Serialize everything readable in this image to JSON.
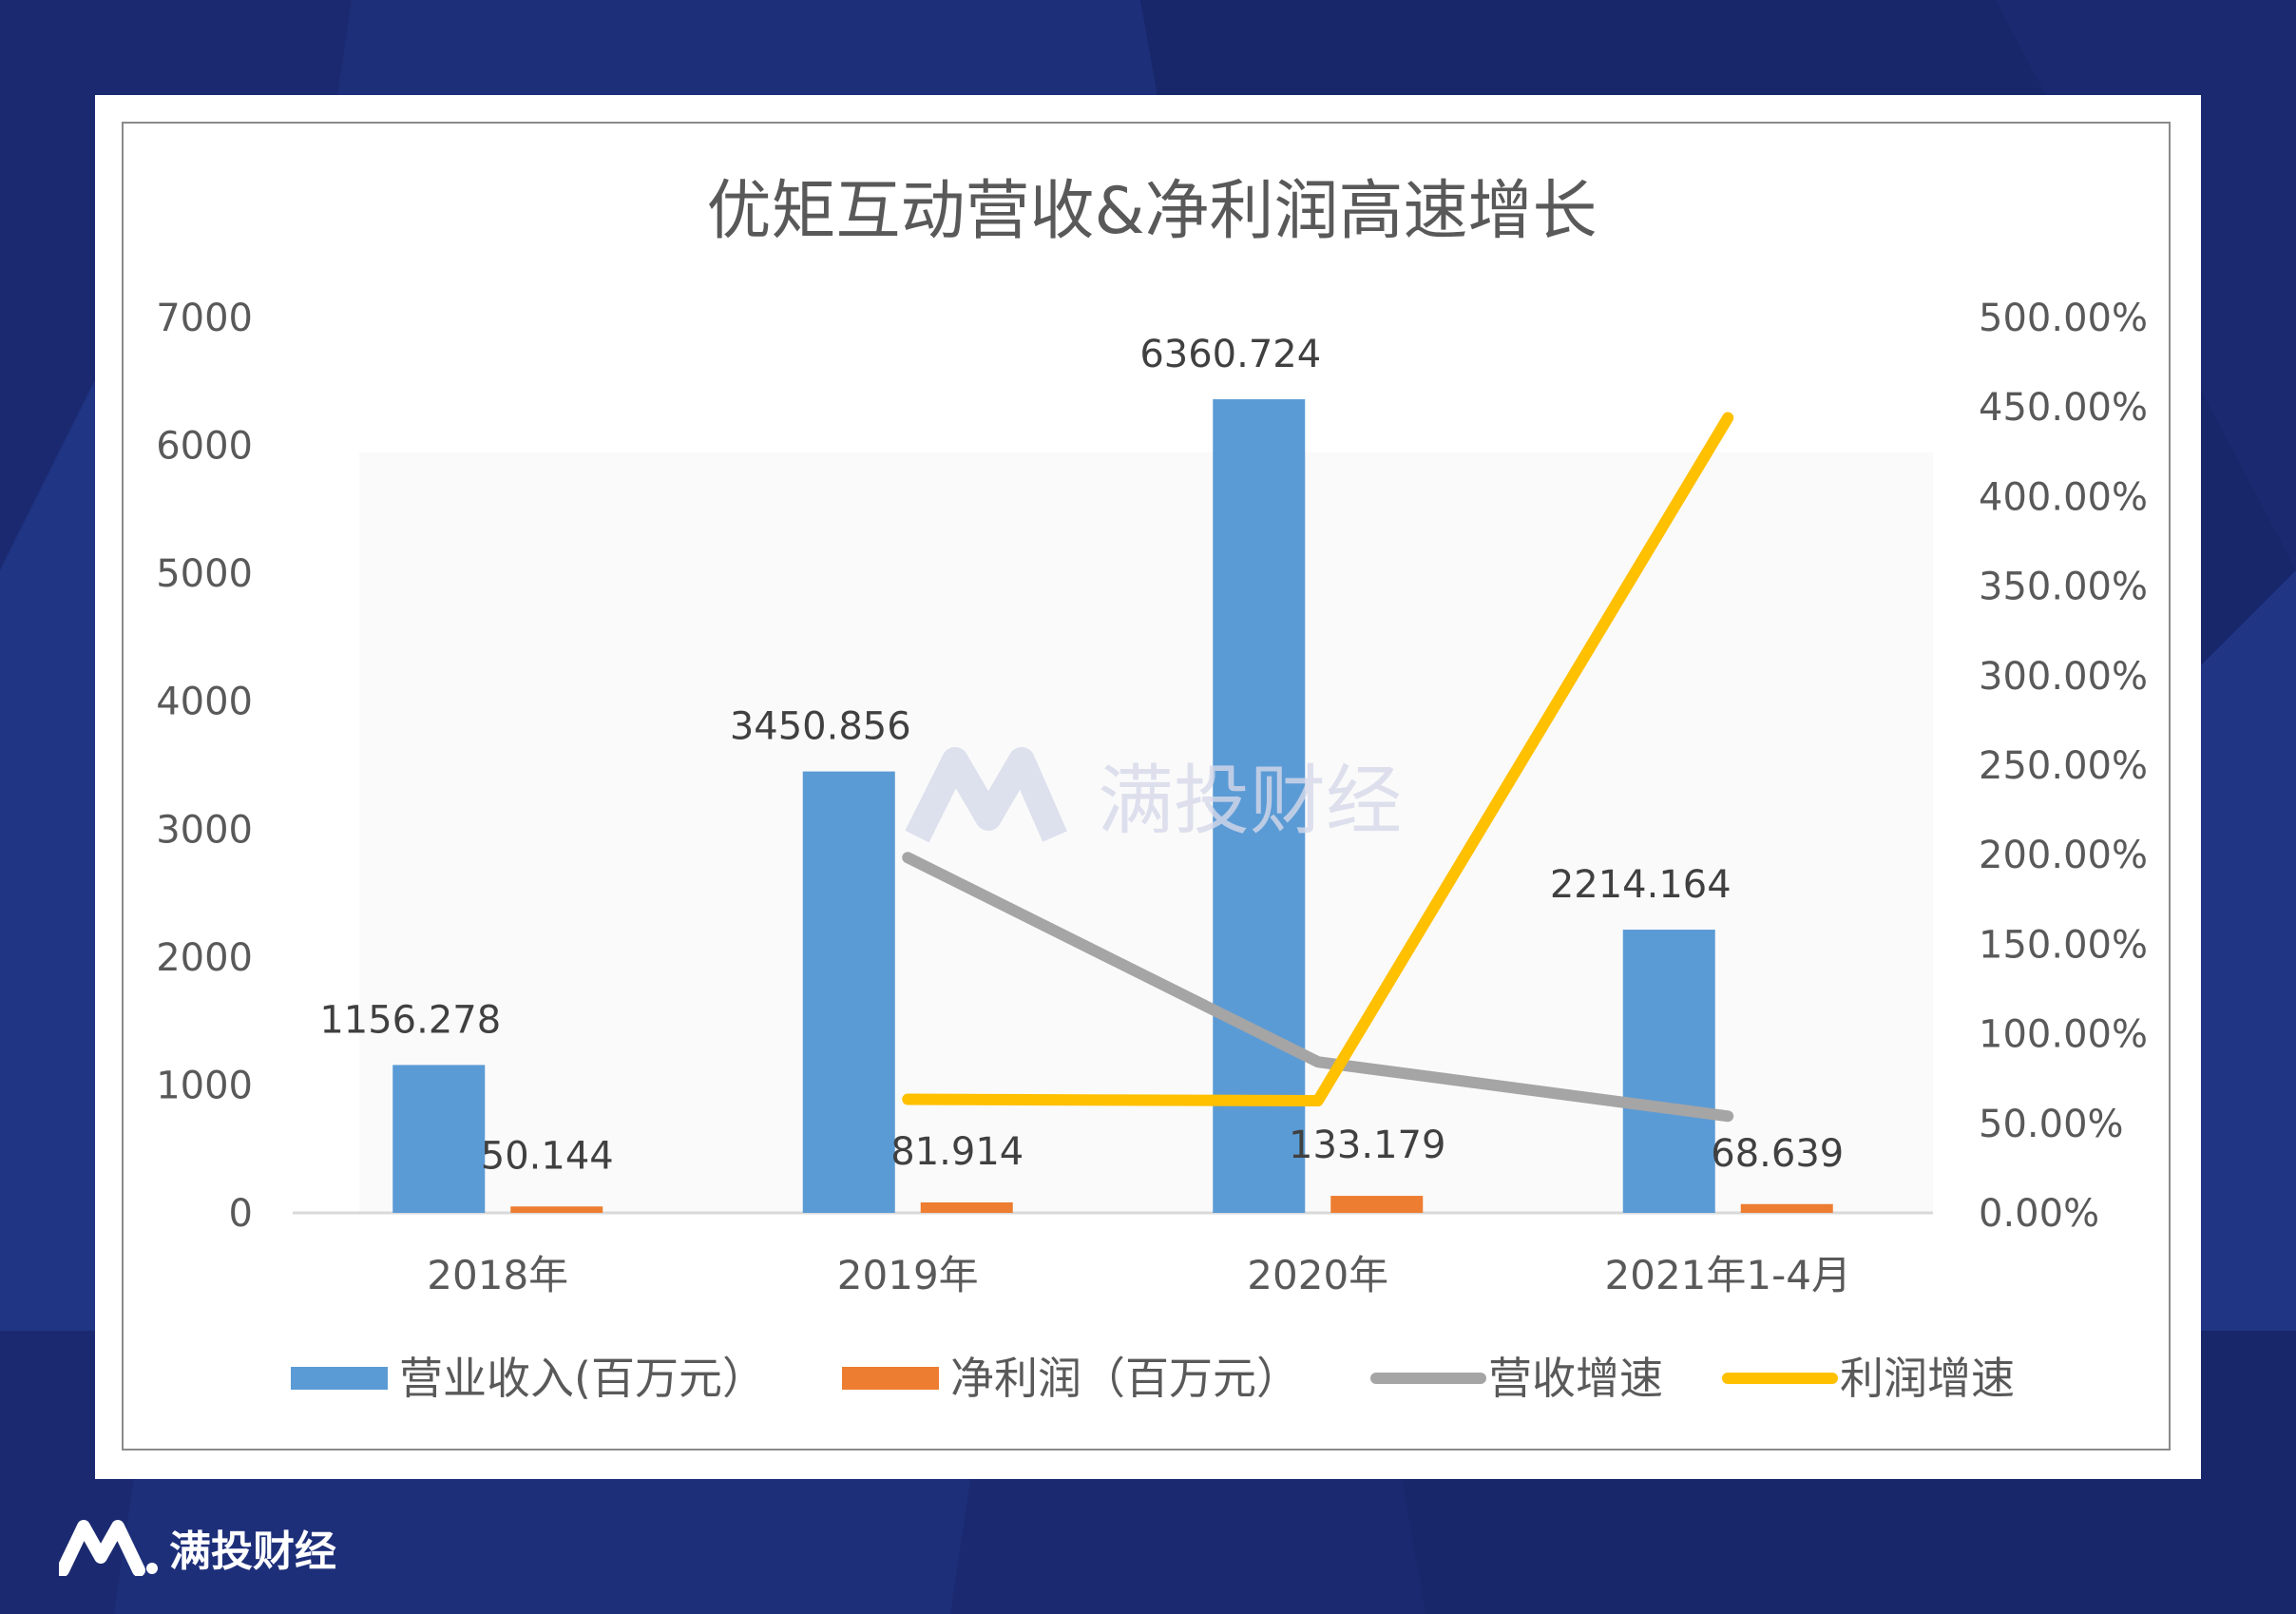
{
  "brand": {
    "name": "满投财经",
    "watermark": "满投财经"
  },
  "colors": {
    "background": "#1b2a70",
    "revenue": "#5b9bd5",
    "profit": "#ed7d31",
    "revenue_growth": "#a5a5a5",
    "profit_growth": "#ffc000"
  },
  "chart_data": {
    "type": "bar+line",
    "title": "优矩互动营收&净利润高速增长",
    "categories": [
      "2018年",
      "2019年",
      "2020年",
      "2021年1-4月"
    ],
    "y_left": {
      "ylim": [
        0,
        7000
      ],
      "ticks": [
        "0",
        "1000",
        "2000",
        "3000",
        "4000",
        "5000",
        "6000",
        "7000"
      ]
    },
    "y_right": {
      "ylim": [
        0,
        500
      ],
      "ticks": [
        "0.00%",
        "50.00%",
        "100.00%",
        "150.00%",
        "200.00%",
        "250.00%",
        "300.00%",
        "350.00%",
        "400.00%",
        "450.00%",
        "500.00%"
      ]
    },
    "bar_series": [
      {
        "name": "营业收入(百万元）",
        "values": [
          1156.278,
          3450.856,
          6360.724,
          2214.164
        ],
        "labels": [
          "1156.278",
          "3450.856",
          "6360.724",
          "2214.164"
        ]
      },
      {
        "name": "净利润（百万元）",
        "values": [
          50.144,
          81.914,
          133.179,
          68.639
        ],
        "labels": [
          "50.144",
          "81.914",
          "133.179",
          "68.639"
        ]
      }
    ],
    "line_series": [
      {
        "name": "营收增速",
        "axis": "right",
        "values": [
          null,
          198.4,
          84.3,
          54
        ]
      },
      {
        "name": "利润增速",
        "axis": "right",
        "values": [
          null,
          63.4,
          62.6,
          444
        ]
      }
    ],
    "legend": "bottom",
    "grid": false
  }
}
